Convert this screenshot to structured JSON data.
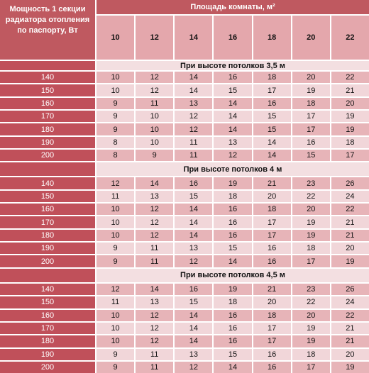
{
  "header": {
    "corner_label": "Мощность 1 секции радиатора отопления по паспорту, Вт",
    "area_label": "Площадь комнаты, м²"
  },
  "areas": [
    "10",
    "12",
    "14",
    "16",
    "18",
    "20",
    "22"
  ],
  "sections": [
    {
      "title": "При высоте потолков 3,5 м",
      "rows": [
        {
          "power": "140",
          "values": [
            "10",
            "12",
            "14",
            "16",
            "18",
            "20",
            "22"
          ]
        },
        {
          "power": "150",
          "values": [
            "10",
            "12",
            "14",
            "15",
            "17",
            "19",
            "21"
          ]
        },
        {
          "power": "160",
          "values": [
            "9",
            "11",
            "13",
            "14",
            "16",
            "18",
            "20"
          ]
        },
        {
          "power": "170",
          "values": [
            "9",
            "10",
            "12",
            "14",
            "15",
            "17",
            "19"
          ]
        },
        {
          "power": "180",
          "values": [
            "9",
            "10",
            "12",
            "14",
            "15",
            "17",
            "19"
          ]
        },
        {
          "power": "190",
          "values": [
            "8",
            "10",
            "11",
            "13",
            "14",
            "16",
            "18"
          ]
        },
        {
          "power": "200",
          "values": [
            "8",
            "9",
            "11",
            "12",
            "14",
            "15",
            "17"
          ]
        }
      ]
    },
    {
      "title": "При высоте потолков 4 м",
      "rows": [
        {
          "power": "140",
          "values": [
            "12",
            "14",
            "16",
            "19",
            "21",
            "23",
            "26"
          ]
        },
        {
          "power": "150",
          "values": [
            "11",
            "13",
            "15",
            "18",
            "20",
            "22",
            "24"
          ]
        },
        {
          "power": "160",
          "values": [
            "10",
            "12",
            "14",
            "16",
            "18",
            "20",
            "22"
          ]
        },
        {
          "power": "170",
          "values": [
            "10",
            "12",
            "14",
            "16",
            "17",
            "19",
            "21"
          ]
        },
        {
          "power": "180",
          "values": [
            "10",
            "12",
            "14",
            "16",
            "17",
            "19",
            "21"
          ]
        },
        {
          "power": "190",
          "values": [
            "9",
            "11",
            "13",
            "15",
            "16",
            "18",
            "20"
          ]
        },
        {
          "power": "200",
          "values": [
            "9",
            "11",
            "12",
            "14",
            "16",
            "17",
            "19"
          ]
        }
      ]
    },
    {
      "title": "При высоте потолков 4,5 м",
      "rows": [
        {
          "power": "140",
          "values": [
            "12",
            "14",
            "16",
            "19",
            "21",
            "23",
            "26"
          ]
        },
        {
          "power": "150",
          "values": [
            "11",
            "13",
            "15",
            "18",
            "20",
            "22",
            "24"
          ]
        },
        {
          "power": "160",
          "values": [
            "10",
            "12",
            "14",
            "16",
            "18",
            "20",
            "22"
          ]
        },
        {
          "power": "170",
          "values": [
            "10",
            "12",
            "14",
            "16",
            "17",
            "19",
            "21"
          ]
        },
        {
          "power": "180",
          "values": [
            "10",
            "12",
            "14",
            "16",
            "17",
            "19",
            "21"
          ]
        },
        {
          "power": "190",
          "values": [
            "9",
            "11",
            "13",
            "15",
            "16",
            "18",
            "20"
          ]
        },
        {
          "power": "200",
          "values": [
            "9",
            "11",
            "12",
            "14",
            "16",
            "17",
            "19"
          ]
        }
      ]
    }
  ]
}
